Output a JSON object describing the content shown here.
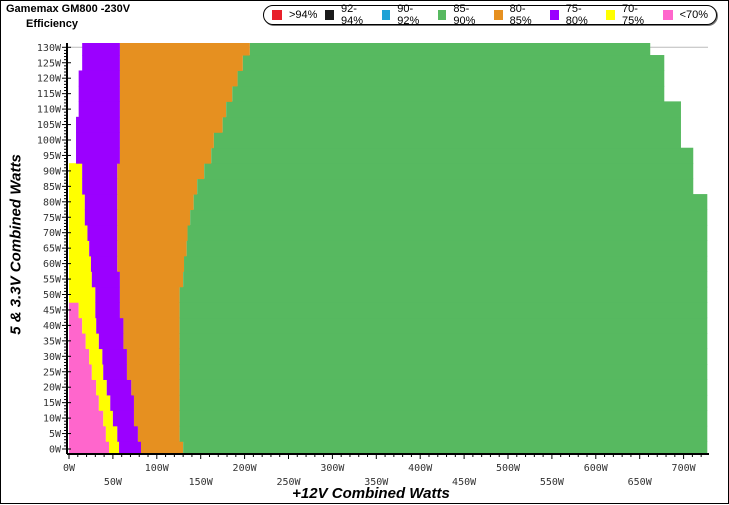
{
  "chart_data": {
    "type": "heatmap",
    "title": "Gamemax GM800 -230V",
    "subtitle": "Efficiency",
    "xlabel": "+12V Combined Watts",
    "ylabel": "5 & 3.3V Combined Watts",
    "xlim": [
      0,
      727
    ],
    "ylim": [
      0,
      130
    ],
    "x_ticks": [
      "0W",
      "50W",
      "100W",
      "150W",
      "200W",
      "250W",
      "300W",
      "350W",
      "400W",
      "450W",
      "500W",
      "550W",
      "600W",
      "650W",
      "700W"
    ],
    "x_tick_values": [
      0,
      50,
      100,
      150,
      200,
      250,
      300,
      350,
      400,
      450,
      500,
      550,
      600,
      650,
      700
    ],
    "y_ticks": [
      "0W",
      "5W",
      "10W",
      "15W",
      "20W",
      "25W",
      "30W",
      "35W",
      "40W",
      "45W",
      "50W",
      "55W",
      "60W",
      "65W",
      "70W",
      "75W",
      "80W",
      "85W",
      "90W",
      "95W",
      "100W",
      "105W",
      "110W",
      "115W",
      "120W",
      "125W",
      "130W"
    ],
    "legend": [
      {
        "label": ">94%",
        "color": "#e8202a"
      },
      {
        "label": "92-94%",
        "color": "#1a1a1a"
      },
      {
        "label": "90-92%",
        "color": "#1fa2d6"
      },
      {
        "label": "85-90%",
        "color": "#57b960"
      },
      {
        "label": "80-85%",
        "color": "#e69020"
      },
      {
        "label": "75-80%",
        "color": "#9b00ff"
      },
      {
        "label": "70-75%",
        "color": "#ffff00"
      },
      {
        "label": "<70%",
        "color": "#ff66cc"
      }
    ],
    "legend_position": "top",
    "rows": [
      {
        "y": 0,
        "bands": [
          [
            "<70%",
            0,
            45.6
          ],
          [
            "70-75%",
            45.6,
            57
          ],
          [
            "75-80%",
            57,
            82
          ],
          [
            "80-85%",
            82,
            130
          ],
          [
            "85-90%",
            130,
            727
          ]
        ]
      },
      {
        "y": 5,
        "bands": [
          [
            "<70%",
            0,
            42
          ],
          [
            "70-75%",
            42,
            55
          ],
          [
            "75-80%",
            55,
            78.5
          ],
          [
            "80-85%",
            78.5,
            126
          ],
          [
            "85-90%",
            126,
            727
          ]
        ]
      },
      {
        "y": 10,
        "bands": [
          [
            "<70%",
            0,
            39
          ],
          [
            "70-75%",
            39,
            50
          ],
          [
            "75-80%",
            50,
            74
          ],
          [
            "80-85%",
            74,
            126
          ],
          [
            "85-90%",
            126,
            727
          ]
        ]
      },
      {
        "y": 15,
        "bands": [
          [
            "<70%",
            0,
            34
          ],
          [
            "70-75%",
            34,
            47
          ],
          [
            "75-80%",
            47,
            74
          ],
          [
            "80-85%",
            74,
            126
          ],
          [
            "85-90%",
            126,
            727
          ]
        ]
      },
      {
        "y": 20,
        "bands": [
          [
            "<70%",
            0,
            31
          ],
          [
            "70-75%",
            31,
            43
          ],
          [
            "75-80%",
            43,
            71
          ],
          [
            "80-85%",
            71,
            126
          ],
          [
            "85-90%",
            126,
            727
          ]
        ]
      },
      {
        "y": 25,
        "bands": [
          [
            "<70%",
            0,
            26
          ],
          [
            "70-75%",
            26,
            39
          ],
          [
            "75-80%",
            39,
            66
          ],
          [
            "80-85%",
            66,
            126
          ],
          [
            "85-90%",
            126,
            727
          ]
        ]
      },
      {
        "y": 30,
        "bands": [
          [
            "<70%",
            0,
            23
          ],
          [
            "70-75%",
            23,
            38
          ],
          [
            "75-80%",
            38,
            66
          ],
          [
            "80-85%",
            66,
            126
          ],
          [
            "85-90%",
            126,
            727
          ]
        ]
      },
      {
        "y": 35,
        "bands": [
          [
            "<70%",
            0,
            19
          ],
          [
            "70-75%",
            19,
            34
          ],
          [
            "75-80%",
            34,
            62
          ],
          [
            "80-85%",
            62,
            126
          ],
          [
            "85-90%",
            126,
            727
          ]
        ]
      },
      {
        "y": 40,
        "bands": [
          [
            "<70%",
            0,
            15
          ],
          [
            "70-75%",
            15,
            31
          ],
          [
            "75-80%",
            31,
            62
          ],
          [
            "80-85%",
            62,
            126
          ],
          [
            "85-90%",
            126,
            727
          ]
        ]
      },
      {
        "y": 45,
        "bands": [
          [
            "<70%",
            0,
            11
          ],
          [
            "70-75%",
            11,
            30
          ],
          [
            "75-80%",
            30,
            58
          ],
          [
            "80-85%",
            58,
            126
          ],
          [
            "85-90%",
            126,
            727
          ]
        ]
      },
      {
        "y": 50,
        "bands": [
          [
            "70-75%",
            0,
            30
          ],
          [
            "75-80%",
            30,
            58
          ],
          [
            "80-85%",
            58,
            126
          ],
          [
            "85-90%",
            126,
            727
          ]
        ]
      },
      {
        "y": 55,
        "bands": [
          [
            "70-75%",
            0,
            26
          ],
          [
            "75-80%",
            26,
            58
          ],
          [
            "80-85%",
            58,
            130
          ],
          [
            "85-90%",
            130,
            727
          ]
        ]
      },
      {
        "y": 60,
        "bands": [
          [
            "70-75%",
            0,
            25
          ],
          [
            "75-80%",
            25,
            55
          ],
          [
            "80-85%",
            55,
            131
          ],
          [
            "85-90%",
            131,
            727
          ]
        ]
      },
      {
        "y": 65,
        "bands": [
          [
            "70-75%",
            0,
            23
          ],
          [
            "75-80%",
            23,
            55
          ],
          [
            "80-85%",
            55,
            134
          ],
          [
            "85-90%",
            134,
            727
          ]
        ]
      },
      {
        "y": 70,
        "bands": [
          [
            "70-75%",
            0,
            21
          ],
          [
            "75-80%",
            21,
            55
          ],
          [
            "80-85%",
            55,
            135
          ],
          [
            "85-90%",
            135,
            727
          ]
        ]
      },
      {
        "y": 75,
        "bands": [
          [
            "70-75%",
            0,
            18
          ],
          [
            "75-80%",
            18,
            55
          ],
          [
            "80-85%",
            55,
            138
          ],
          [
            "85-90%",
            138,
            727
          ]
        ]
      },
      {
        "y": 80,
        "bands": [
          [
            "70-75%",
            0,
            18
          ],
          [
            "75-80%",
            18,
            55
          ],
          [
            "80-85%",
            55,
            142
          ],
          [
            "85-90%",
            142,
            727
          ]
        ]
      },
      {
        "y": 85,
        "bands": [
          [
            "70-75%",
            0,
            15
          ],
          [
            "75-80%",
            15,
            55
          ],
          [
            "80-85%",
            55,
            146
          ],
          [
            "85-90%",
            146,
            711
          ]
        ]
      },
      {
        "y": 90,
        "bands": [
          [
            "70-75%",
            0,
            15
          ],
          [
            "75-80%",
            15,
            55
          ],
          [
            "80-85%",
            55,
            154
          ],
          [
            "85-90%",
            154,
            711
          ]
        ]
      },
      {
        "y": 95,
        "bands": [
          [
            "75-80%",
            8,
            58
          ],
          [
            "80-85%",
            58,
            162
          ],
          [
            "85-90%",
            162,
            711
          ]
        ]
      },
      {
        "y": 100,
        "bands": [
          [
            "75-80%",
            8,
            58
          ],
          [
            "80-85%",
            58,
            165
          ],
          [
            "85-90%",
            165,
            697
          ]
        ]
      },
      {
        "y": 105,
        "bands": [
          [
            "75-80%",
            8,
            58
          ],
          [
            "80-85%",
            58,
            175
          ],
          [
            "85-90%",
            175,
            697
          ]
        ]
      },
      {
        "y": 110,
        "bands": [
          [
            "75-80%",
            11,
            58
          ],
          [
            "80-85%",
            58,
            179
          ],
          [
            "85-90%",
            179,
            697
          ]
        ]
      },
      {
        "y": 115,
        "bands": [
          [
            "75-80%",
            11,
            58
          ],
          [
            "80-85%",
            58,
            186
          ],
          [
            "85-90%",
            186,
            678
          ]
        ]
      },
      {
        "y": 120,
        "bands": [
          [
            "75-80%",
            11,
            58
          ],
          [
            "80-85%",
            58,
            192
          ],
          [
            "85-90%",
            192,
            678
          ]
        ]
      },
      {
        "y": 125,
        "bands": [
          [
            "75-80%",
            15,
            58
          ],
          [
            "80-85%",
            58,
            198
          ],
          [
            "85-90%",
            198,
            678
          ]
        ]
      },
      {
        "y": 130,
        "bands": [
          [
            "75-80%",
            15,
            58
          ],
          [
            "80-85%",
            58,
            206
          ],
          [
            "85-90%",
            206,
            662
          ]
        ]
      }
    ]
  }
}
